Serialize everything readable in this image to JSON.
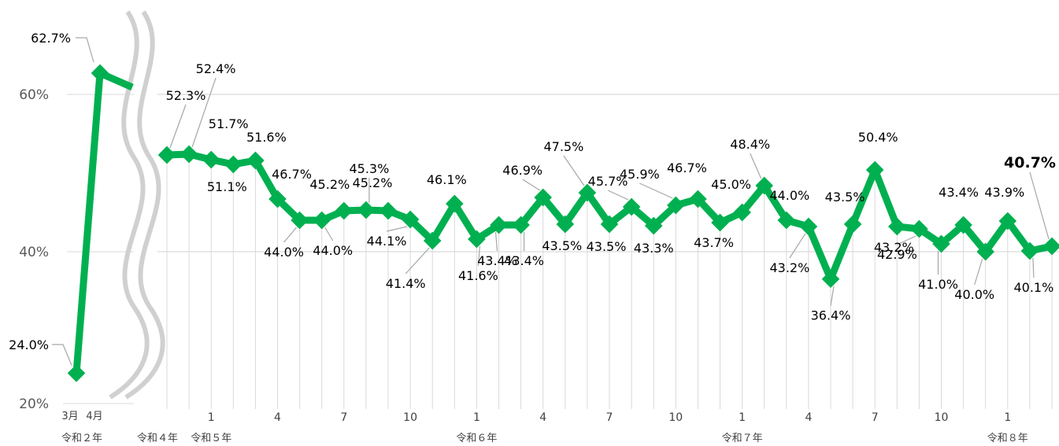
{
  "chart_data": {
    "type": "line",
    "title": "",
    "xlabel": "",
    "ylabel": "",
    "ylim": [
      20,
      70
    ],
    "y_ticks": [
      "20%",
      "40%",
      "60%"
    ],
    "axis_break": true,
    "grid": "horizontal + vertical",
    "colors": {
      "line": "#00b050",
      "grid": "#d9d9d9",
      "highlight": "#ff0000",
      "axis_break": "#d0d0d0"
    },
    "segment_early": {
      "x_labels": [
        "3月",
        "4月"
      ],
      "era_label": "令和２年",
      "values": [
        24.0,
        62.7
      ],
      "labels": [
        "24.0%",
        "62.7%"
      ]
    },
    "series": [
      {
        "values": [
          52.3,
          52.4,
          51.7,
          51.1,
          51.6,
          46.7,
          44.0,
          44.0,
          45.2,
          45.3,
          45.2,
          44.1,
          41.4,
          46.1,
          41.6,
          43.4,
          43.4,
          46.9,
          43.5,
          47.5,
          43.5,
          45.7,
          43.3,
          45.9,
          46.7,
          43.7,
          45.0,
          48.4,
          44.0,
          43.2,
          36.4,
          43.5,
          50.4,
          43.2,
          42.9,
          41.0,
          43.4,
          40.0,
          43.9,
          40.1,
          40.7
        ],
        "labels": [
          "52.3%",
          "52.4%",
          "51.7%",
          "51.1%",
          "51.6%",
          "46.7%",
          "44.0%",
          "44.0%",
          "45.2%",
          "45.3%",
          "45.2%",
          "44.1%",
          "41.4%",
          "46.1%",
          "41.6%",
          "43.4%",
          "43.4%",
          "46.9%",
          "43.5%",
          "47.5%",
          "43.5%",
          "45.7%",
          "43.3%",
          "45.9%",
          "46.7%",
          "43.7%",
          "45.0%",
          "48.4%",
          "44.0%",
          "43.2%",
          "36.4%",
          "43.5%",
          "50.4%",
          "43.2%",
          "42.9%",
          "41.0%",
          "43.4%",
          "40.0%",
          "43.9%",
          "40.1%",
          "40.7%"
        ],
        "highlight_last": true
      }
    ],
    "x_month_labels": [
      {
        "index": 2,
        "label": "1"
      },
      {
        "index": 5,
        "label": "4"
      },
      {
        "index": 8,
        "label": "7"
      },
      {
        "index": 11,
        "label": "10"
      },
      {
        "index": 14,
        "label": "1"
      },
      {
        "index": 17,
        "label": "4"
      },
      {
        "index": 20,
        "label": "7"
      },
      {
        "index": 23,
        "label": "10"
      },
      {
        "index": 26,
        "label": "1"
      },
      {
        "index": 29,
        "label": "4"
      },
      {
        "index": 32,
        "label": "7"
      },
      {
        "index": 35,
        "label": "10"
      },
      {
        "index": 38,
        "label": "1"
      }
    ],
    "era_labels": [
      {
        "index": 0,
        "label": "令和４年"
      },
      {
        "index": 2,
        "label": "令和５年"
      },
      {
        "index": 14,
        "label": "令和６年"
      },
      {
        "index": 26,
        "label": "令和７年"
      },
      {
        "index": 38,
        "label": "令和８年"
      }
    ]
  }
}
